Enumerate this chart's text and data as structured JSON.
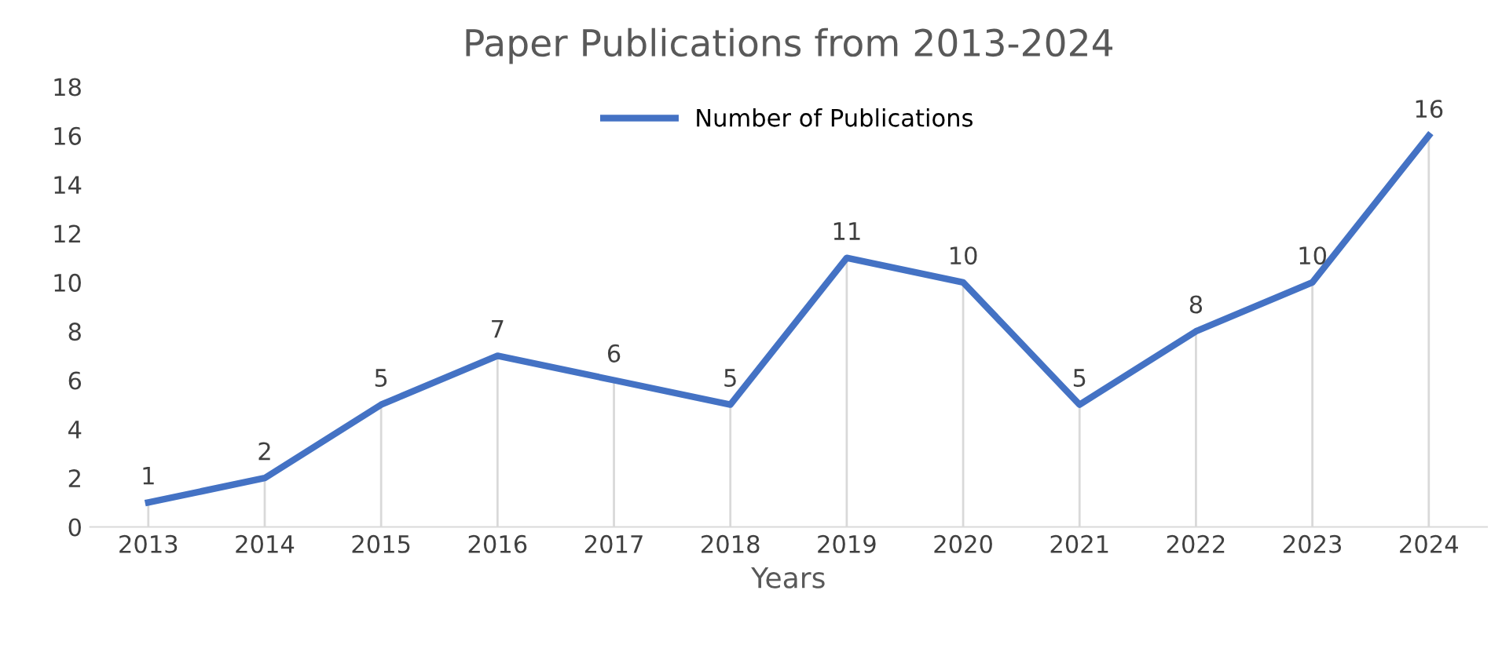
{
  "chart_data": {
    "type": "line",
    "title": "Paper Publications from 2013-2024",
    "xlabel": "Years",
    "categories": [
      "2013",
      "2014",
      "2015",
      "2016",
      "2017",
      "2018",
      "2019",
      "2020",
      "2021",
      "2022",
      "2023",
      "2024"
    ],
    "series": [
      {
        "name": "Number of Publications",
        "color": "#4472c4",
        "values": [
          1,
          2,
          5,
          7,
          6,
          5,
          11,
          10,
          5,
          8,
          10,
          16
        ]
      }
    ],
    "ylim": [
      0,
      18
    ],
    "yticks": [
      0,
      2,
      4,
      6,
      8,
      10,
      12,
      14,
      16,
      18
    ],
    "grid": "x",
    "legend": "top",
    "data_labels": true,
    "marker": "none",
    "line_style": "solid"
  }
}
